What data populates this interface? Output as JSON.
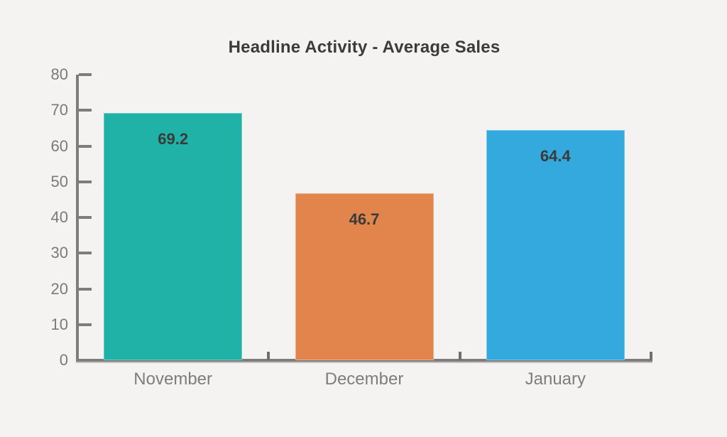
{
  "background_color": "#f4f3f1",
  "chart_data": {
    "type": "bar",
    "title": "Headline Activity - Average Sales",
    "categories": [
      "November",
      "December",
      "January"
    ],
    "values": [
      69.2,
      46.7,
      64.4
    ],
    "value_labels": [
      "69.2",
      "46.7",
      "64.4"
    ],
    "bar_colors": [
      "#20b2a6",
      "#e2854d",
      "#34a9dd"
    ],
    "xlabel": "",
    "ylabel": "",
    "ylim": [
      0,
      80
    ],
    "ytick_step": 10,
    "ytick_labels": [
      "0",
      "10",
      "20",
      "30",
      "40",
      "50",
      "60",
      "70",
      "80"
    ],
    "grid": false,
    "legend": null,
    "title_color": "#3b3b3b",
    "axis_color": "#7d7d7d",
    "tick_label_color": "#7a7a7a",
    "category_label_color": "#7d7d7d",
    "value_label_color": "#3a3a3a"
  }
}
